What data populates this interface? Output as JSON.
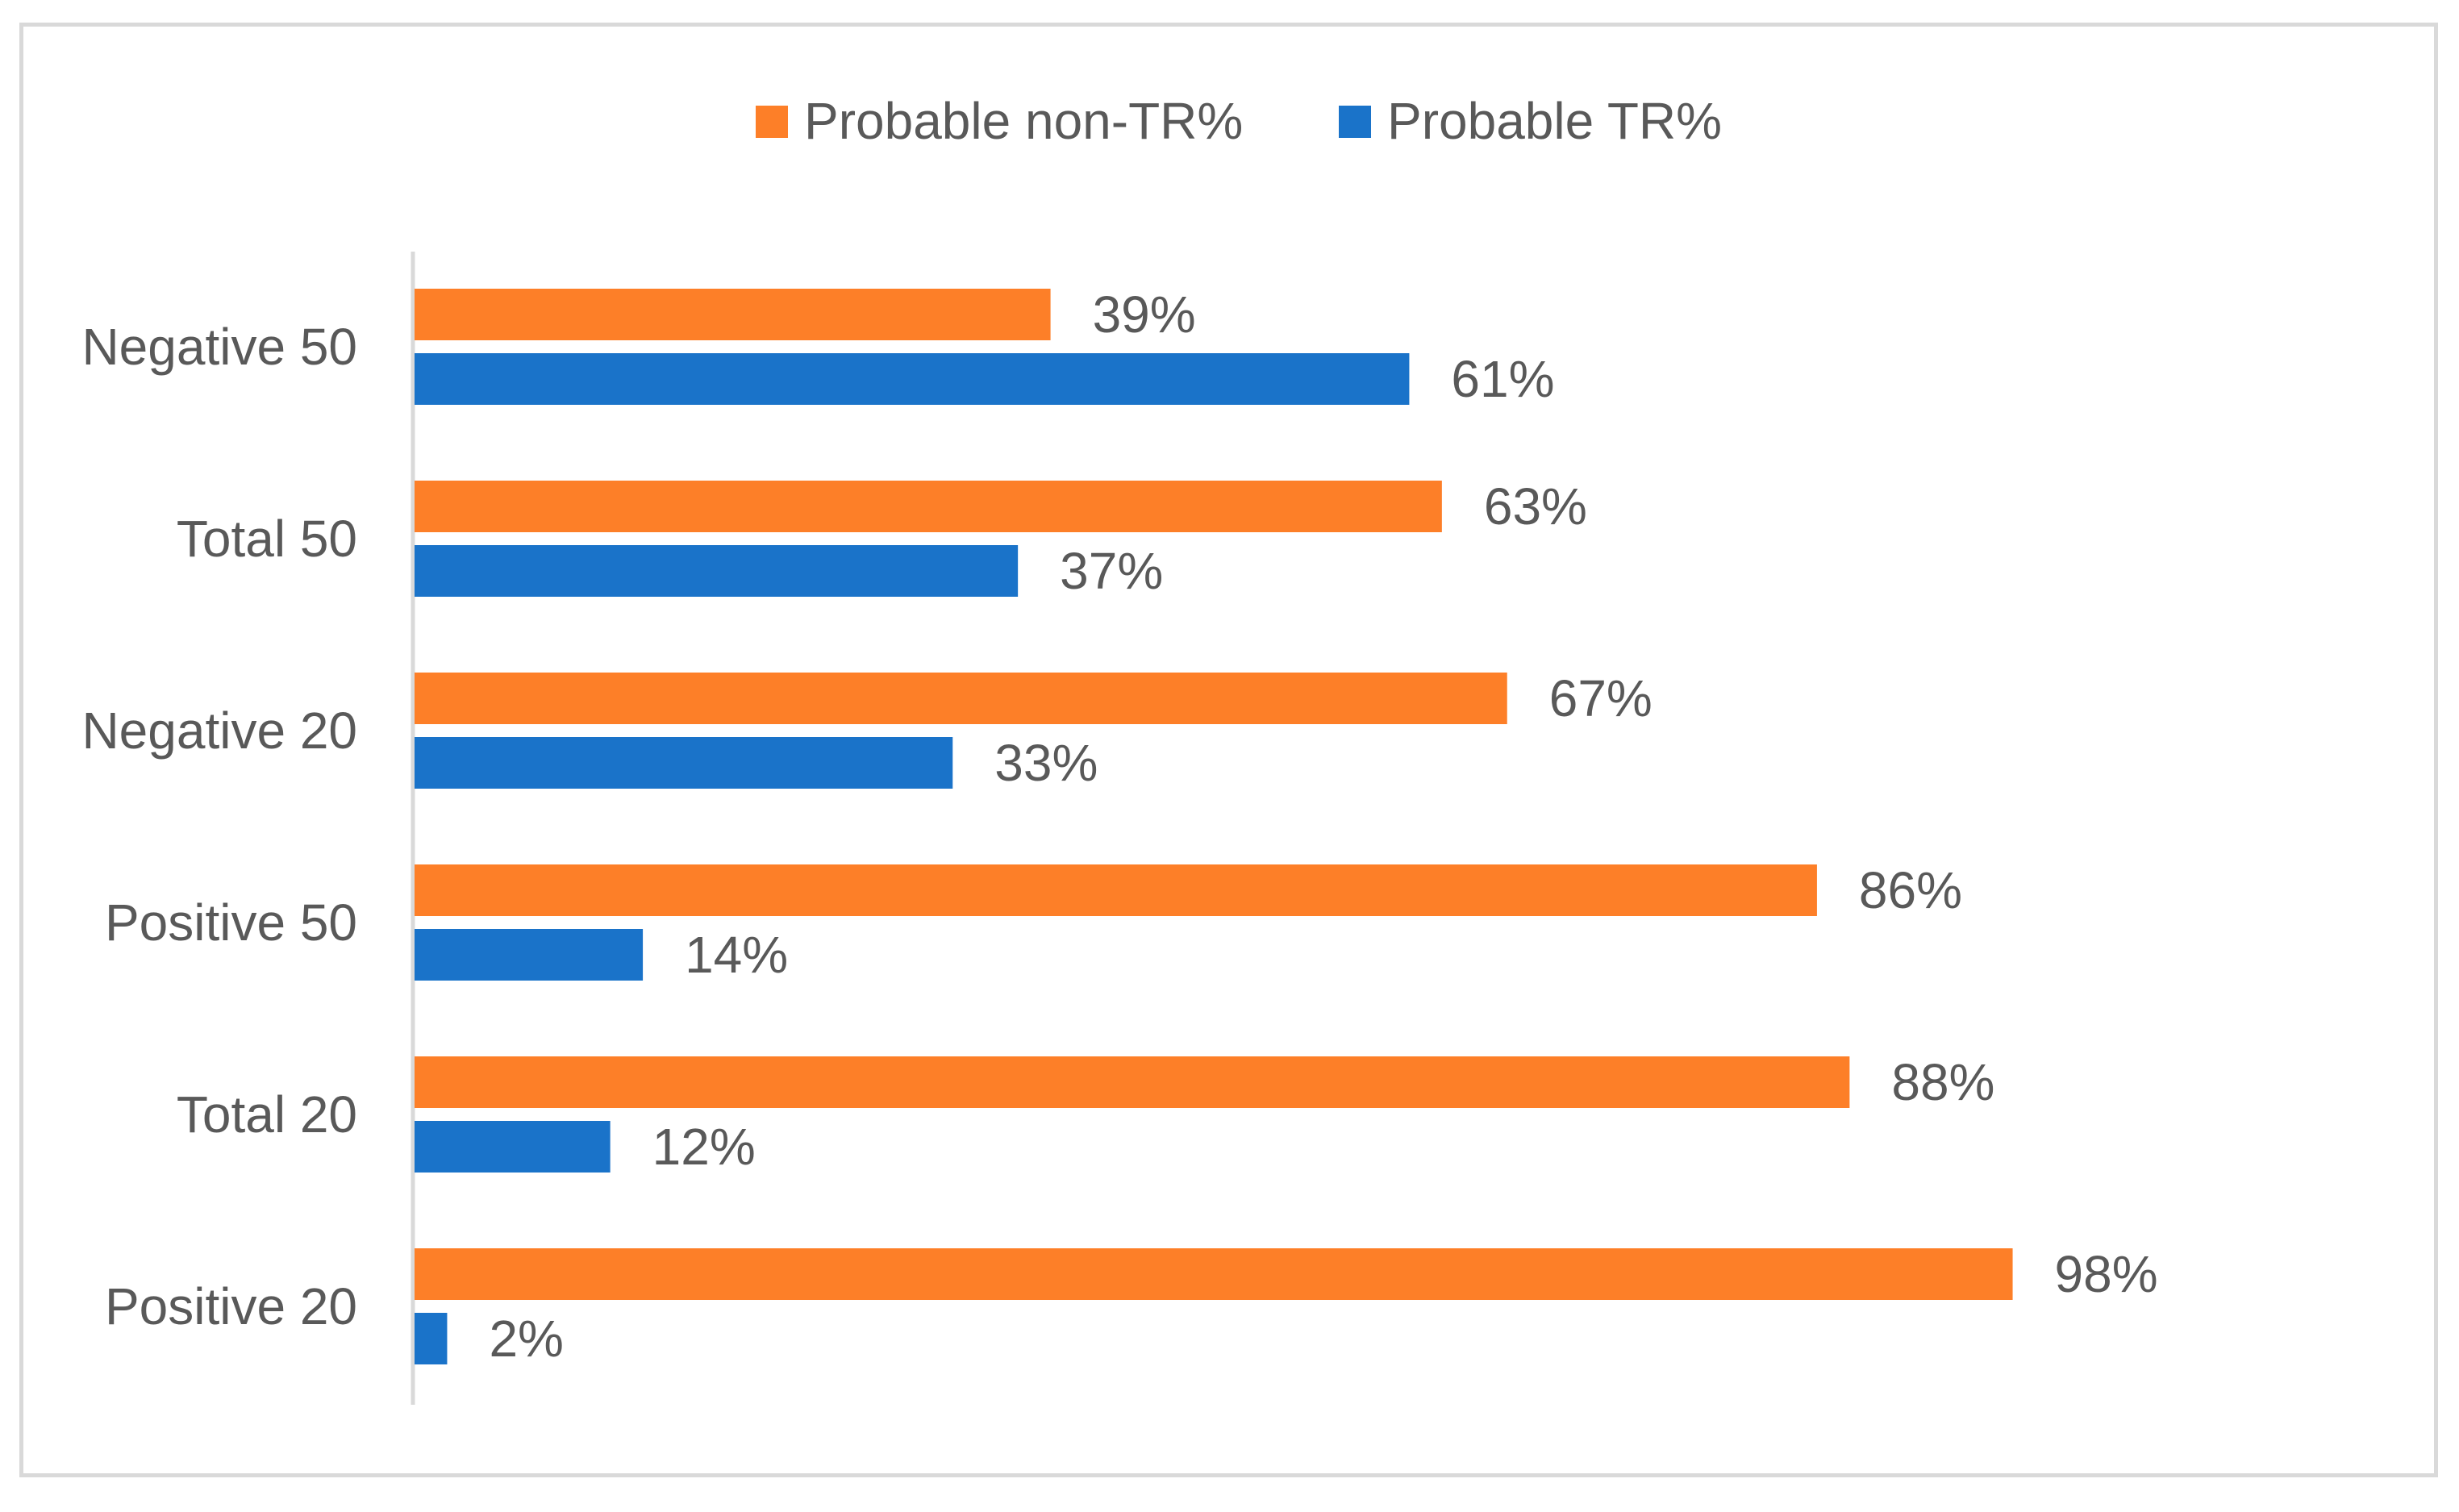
{
  "chart_data": {
    "type": "bar",
    "orientation": "horizontal",
    "title": "",
    "xlabel": "",
    "ylabel": "",
    "xlim": [
      0,
      100
    ],
    "grid": false,
    "legend_position": "top-center",
    "categories": [
      "Negative 50",
      "Total 50",
      "Negative 20",
      "Positive 50",
      "Total 20",
      "Positive 20"
    ],
    "series": [
      {
        "name": "Probable non-TR%",
        "color": "#fd7f28",
        "values": [
          39,
          63,
          67,
          86,
          88,
          98
        ],
        "labels": [
          "39%",
          "63%",
          "67%",
          "86%",
          "88%",
          "98%"
        ]
      },
      {
        "name": "Probable TR%",
        "color": "#1a73c9",
        "values": [
          61,
          37,
          33,
          14,
          12,
          2
        ],
        "labels": [
          "61%",
          "37%",
          "33%",
          "14%",
          "12%",
          "2%"
        ]
      }
    ]
  }
}
